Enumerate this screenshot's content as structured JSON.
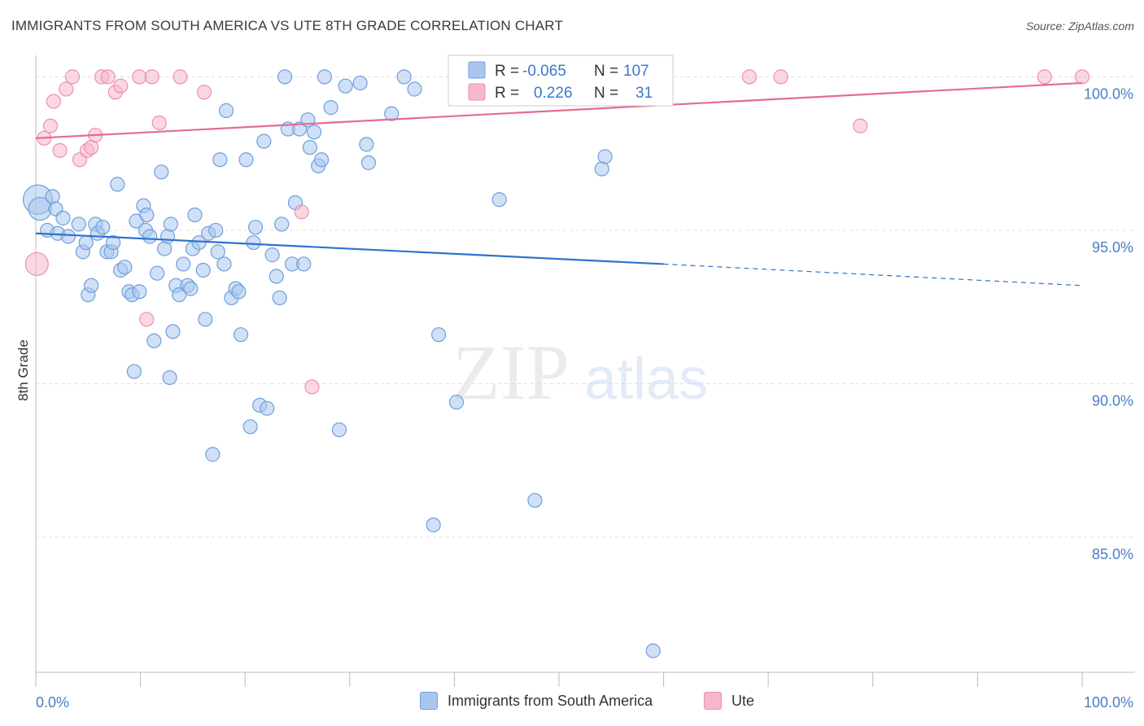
{
  "title": "IMMIGRANTS FROM SOUTH AMERICA VS UTE 8TH GRADE CORRELATION CHART",
  "source": "Source: ZipAtlas.com",
  "watermark": {
    "zip": "ZIP",
    "atlas": "atlas"
  },
  "colors": {
    "blue_fill": "#a9c6ef",
    "blue_stroke": "#6f9fdc",
    "blue_line": "#2f72cc",
    "pink_fill": "#f6b8cb",
    "pink_stroke": "#ee8fac",
    "pink_line": "#e46c93",
    "grid": "#dddddd",
    "tick_label": "#4a7fc4"
  },
  "legend": {
    "rows": [
      {
        "r_label": "R =",
        "r_value": "-0.065",
        "n_label": "N =",
        "n_value": "107",
        "series": "blue"
      },
      {
        "r_label": "R =",
        "r_value": "0.226",
        "n_label": "N =",
        "n_value": "31",
        "series": "pink"
      }
    ]
  },
  "bottom_legend": [
    {
      "label": "Immigrants from South America",
      "series": "blue"
    },
    {
      "label": "Ute",
      "series": "pink"
    }
  ],
  "chart_data": {
    "type": "scatter",
    "title": "IMMIGRANTS FROM SOUTH AMERICA VS UTE 8TH GRADE CORRELATION CHART",
    "xlabel": "",
    "ylabel": "8th Grade",
    "xlim": [
      0,
      100
    ],
    "ylim": [
      80.6,
      100.7
    ],
    "x_tick_labels": [
      "0.0%",
      "100.0%"
    ],
    "y_ticks": [
      {
        "value": 100,
        "label": "100.0%"
      },
      {
        "value": 95,
        "label": "95.0%"
      },
      {
        "value": 90,
        "label": "90.0%"
      },
      {
        "value": 85,
        "label": "85.0%"
      }
    ],
    "grid": true,
    "legend_position": "top-center",
    "series": [
      {
        "name": "Immigrants from South America",
        "color": "#a9c6ef",
        "trend": {
          "x0": 0,
          "y0": 94.9,
          "x1": 60,
          "y1": 93.9,
          "dashed_to_x": 100,
          "dashed_to_y": 93.2
        },
        "points": [
          [
            0.2,
            96.0,
            "L"
          ],
          [
            0.4,
            95.7,
            "M"
          ],
          [
            1.1,
            95.0
          ],
          [
            1.6,
            96.1
          ],
          [
            1.9,
            95.7
          ],
          [
            2.1,
            94.9
          ],
          [
            2.6,
            95.4
          ],
          [
            3.1,
            94.8
          ],
          [
            4.1,
            95.2
          ],
          [
            4.5,
            94.3
          ],
          [
            4.8,
            94.6
          ],
          [
            5.0,
            92.9
          ],
          [
            5.3,
            93.2
          ],
          [
            5.7,
            95.2
          ],
          [
            5.9,
            94.9
          ],
          [
            6.4,
            95.1
          ],
          [
            6.8,
            94.3
          ],
          [
            7.2,
            94.3
          ],
          [
            7.4,
            94.6
          ],
          [
            7.8,
            96.5
          ],
          [
            8.1,
            93.7
          ],
          [
            8.5,
            93.8
          ],
          [
            8.9,
            93.0
          ],
          [
            9.2,
            92.9
          ],
          [
            9.4,
            90.4
          ],
          [
            9.6,
            95.3
          ],
          [
            9.9,
            93.0
          ],
          [
            10.3,
            95.8
          ],
          [
            10.5,
            95.0
          ],
          [
            10.6,
            95.5
          ],
          [
            10.9,
            94.8
          ],
          [
            11.3,
            91.4
          ],
          [
            11.6,
            93.6
          ],
          [
            12.0,
            96.9
          ],
          [
            12.3,
            94.4
          ],
          [
            12.6,
            94.8
          ],
          [
            12.8,
            90.2
          ],
          [
            12.9,
            95.2
          ],
          [
            13.1,
            91.7
          ],
          [
            13.4,
            93.2
          ],
          [
            13.7,
            92.9
          ],
          [
            14.1,
            93.9
          ],
          [
            14.5,
            93.2
          ],
          [
            14.8,
            93.1
          ],
          [
            15.0,
            94.4
          ],
          [
            15.2,
            95.5
          ],
          [
            15.6,
            94.6
          ],
          [
            16.0,
            93.7
          ],
          [
            16.2,
            92.1
          ],
          [
            16.5,
            94.9
          ],
          [
            16.9,
            87.7
          ],
          [
            17.2,
            95.0
          ],
          [
            17.4,
            94.3
          ],
          [
            17.6,
            97.3
          ],
          [
            18.0,
            93.9
          ],
          [
            18.2,
            98.9
          ],
          [
            18.7,
            92.8
          ],
          [
            19.1,
            93.1
          ],
          [
            19.4,
            93.0
          ],
          [
            19.6,
            91.6
          ],
          [
            20.1,
            97.3
          ],
          [
            20.5,
            88.6
          ],
          [
            20.8,
            94.6
          ],
          [
            21.0,
            95.1
          ],
          [
            21.4,
            89.3
          ],
          [
            21.8,
            97.9
          ],
          [
            22.1,
            89.2
          ],
          [
            22.6,
            94.2
          ],
          [
            23.0,
            93.5
          ],
          [
            23.3,
            92.8
          ],
          [
            23.5,
            95.2
          ],
          [
            23.8,
            100.0
          ],
          [
            24.1,
            98.3
          ],
          [
            24.5,
            93.9
          ],
          [
            24.8,
            95.9
          ],
          [
            25.2,
            98.3
          ],
          [
            25.6,
            93.9
          ],
          [
            26.0,
            98.6
          ],
          [
            26.2,
            97.7
          ],
          [
            26.6,
            98.2
          ],
          [
            27.0,
            97.1
          ],
          [
            27.3,
            97.3
          ],
          [
            27.6,
            100.0
          ],
          [
            28.2,
            99.0
          ],
          [
            29.0,
            88.5
          ],
          [
            29.6,
            99.7
          ],
          [
            31.0,
            99.8
          ],
          [
            31.6,
            97.8
          ],
          [
            31.8,
            97.2
          ],
          [
            34.0,
            98.8
          ],
          [
            35.2,
            100.0
          ],
          [
            36.2,
            99.6
          ],
          [
            38.0,
            85.4
          ],
          [
            38.5,
            91.6
          ],
          [
            40.2,
            89.4
          ],
          [
            44.3,
            96.0
          ],
          [
            47.7,
            86.2
          ],
          [
            54.1,
            97.0
          ],
          [
            54.4,
            97.4
          ],
          [
            59.0,
            81.3
          ]
        ]
      },
      {
        "name": "Ute",
        "color": "#f6b8cb",
        "trend": {
          "x0": 0,
          "y0": 98.0,
          "x1": 100,
          "y1": 99.8
        },
        "points": [
          [
            0.1,
            93.9,
            "M"
          ],
          [
            0.8,
            98.0
          ],
          [
            1.4,
            98.4
          ],
          [
            1.7,
            99.2
          ],
          [
            2.3,
            97.6
          ],
          [
            2.9,
            99.6
          ],
          [
            3.5,
            100.0
          ],
          [
            4.2,
            97.3
          ],
          [
            4.9,
            97.6
          ],
          [
            5.3,
            97.7
          ],
          [
            5.7,
            98.1
          ],
          [
            6.3,
            100.0
          ],
          [
            6.9,
            100.0
          ],
          [
            7.6,
            99.5
          ],
          [
            8.1,
            99.7
          ],
          [
            9.9,
            100.0
          ],
          [
            10.6,
            92.1
          ],
          [
            11.1,
            100.0
          ],
          [
            11.8,
            98.5
          ],
          [
            13.8,
            100.0
          ],
          [
            16.1,
            99.5
          ],
          [
            25.4,
            95.6
          ],
          [
            26.4,
            89.9
          ],
          [
            44.0,
            100.0
          ],
          [
            52.0,
            100.0
          ],
          [
            68.2,
            100.0
          ],
          [
            71.2,
            100.0
          ],
          [
            78.8,
            98.4
          ],
          [
            96.4,
            100.0
          ],
          [
            100.0,
            100.0
          ]
        ]
      }
    ]
  }
}
